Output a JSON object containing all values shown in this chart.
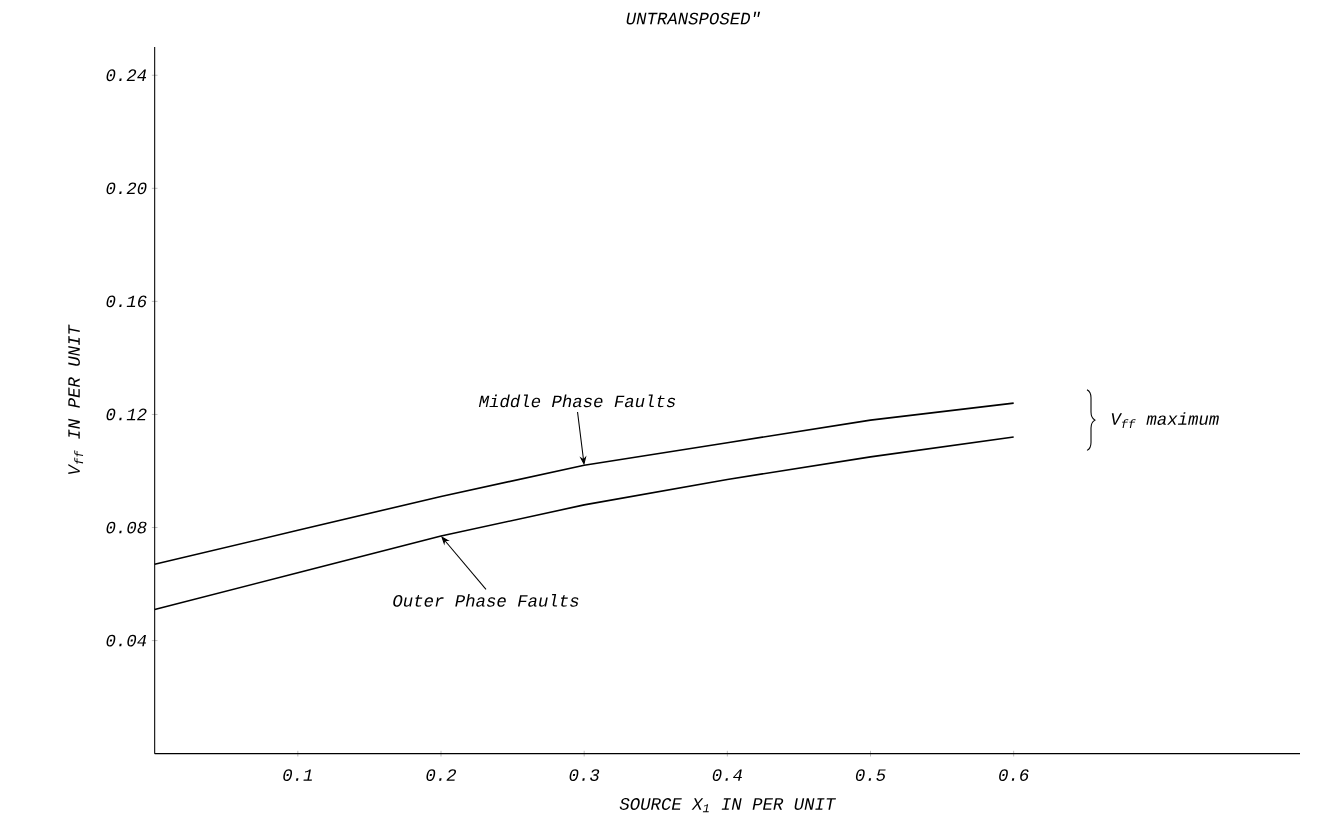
{
  "chart_data": {
    "type": "line",
    "title": "UNTRANSPOSED\"",
    "xlabel": "SOURCE X$_{1}$ IN PER UNIT",
    "ylabel": "V$_{ff}$ IN PER UNIT",
    "x": [
      0,
      0.1,
      0.2,
      0.3,
      0.4,
      0.5,
      0.6
    ],
    "series": [
      {
        "name": "Middle Phase Faults",
        "color": "#000000",
        "values": [
          0.067,
          0.079,
          0.091,
          0.102,
          0.11,
          0.118,
          0.124
        ]
      },
      {
        "name": "Outer Phase Faults",
        "color": "#000000",
        "values": [
          0.051,
          0.064,
          0.077,
          0.088,
          0.097,
          0.105,
          0.112
        ]
      }
    ],
    "annotations": [
      "V$_{ff}$ maximum"
    ],
    "xlim": [
      0,
      0.8
    ],
    "ylim": [
      0,
      0.25
    ],
    "xticks": [
      0.1,
      0.2,
      0.3,
      0.4,
      0.5,
      0.6
    ],
    "yticks": [
      0.04,
      0.08,
      0.12,
      0.16,
      {
        "value": 0.2,
        "label": "0.20"
      },
      0.24
    ],
    "grid": false,
    "legend": false
  }
}
